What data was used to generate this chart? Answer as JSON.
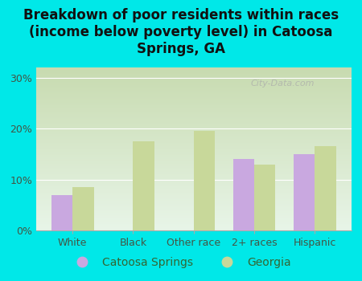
{
  "categories": [
    "White",
    "Black",
    "Other race",
    "2+ races",
    "Hispanic"
  ],
  "catoosa_values": [
    7.0,
    0.0,
    0.0,
    14.0,
    15.0
  ],
  "georgia_values": [
    8.5,
    17.5,
    19.5,
    13.0,
    16.5
  ],
  "catoosa_color": "#c9a8e0",
  "georgia_color": "#c8d89a",
  "title": "Breakdown of poor residents within races\n(income below poverty level) in Catoosa\nSprings, GA",
  "title_fontsize": 12,
  "ylim": [
    0,
    32
  ],
  "yticks": [
    0,
    10,
    20,
    30
  ],
  "ytick_labels": [
    "0%",
    "10%",
    "20%",
    "30%"
  ],
  "background_color": "#00e8e8",
  "plot_bg_top": "#c8dbb0",
  "plot_bg_bottom": "#e8f5e8",
  "bar_width": 0.35,
  "legend_catoosa": "Catoosa Springs",
  "legend_georgia": "Georgia",
  "watermark": "City-Data.com"
}
